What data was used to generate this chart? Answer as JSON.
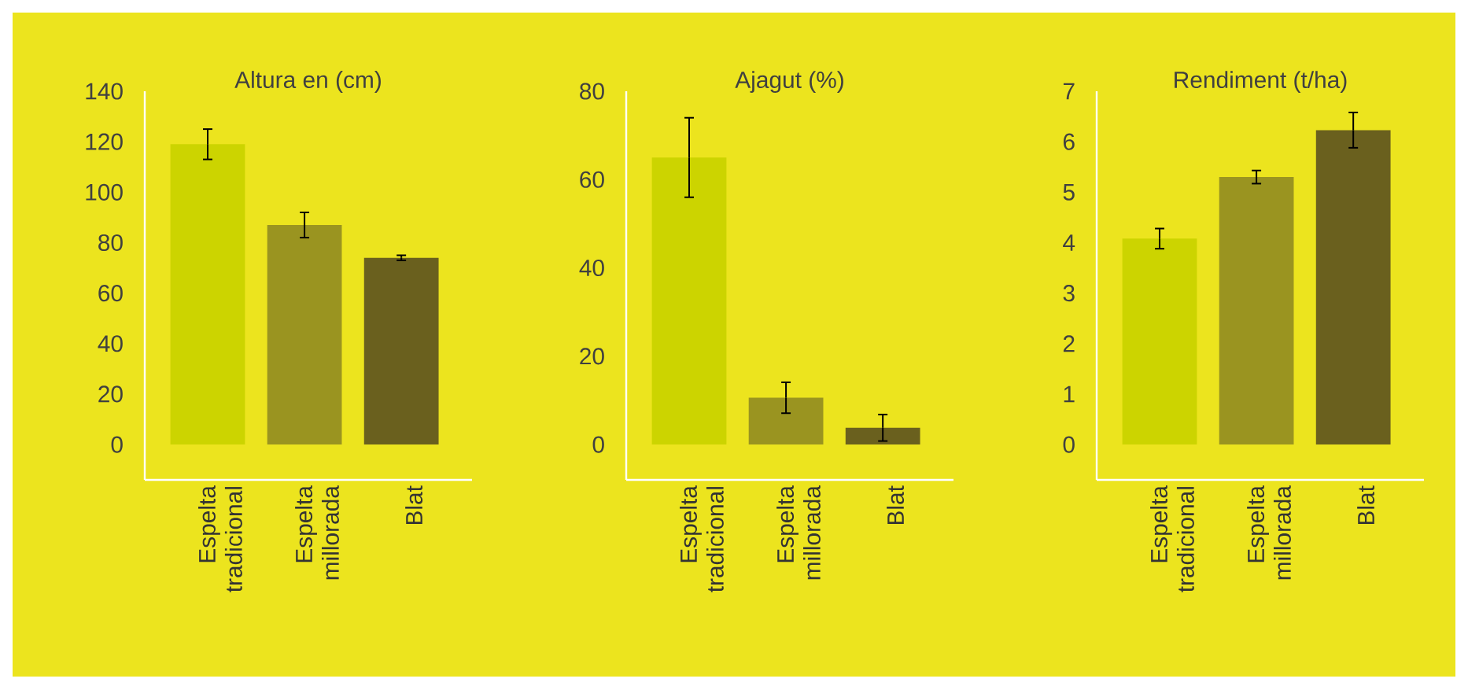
{
  "chart_data": [
    {
      "type": "bar",
      "title": "Altura en (cm)",
      "categories": [
        "Espelta tradicional",
        "Espelta millorada",
        "Blat"
      ],
      "values": [
        119,
        87,
        74
      ],
      "errors": [
        6,
        5,
        1
      ],
      "colors": [
        "#ccd400",
        "#9a9420",
        "#6a601e"
      ],
      "ylim": [
        -14,
        140
      ],
      "yticks": [
        0,
        20,
        40,
        60,
        80,
        100,
        120,
        140
      ]
    },
    {
      "type": "bar",
      "title": "Ajagut (%)",
      "categories": [
        "Espelta tradicional",
        "Espelta millorada",
        "Blat"
      ],
      "values": [
        65,
        10.6,
        3.8
      ],
      "errors": [
        9,
        3.5,
        3
      ],
      "colors": [
        "#ccd400",
        "#9a9420",
        "#6a601e"
      ],
      "ylim": [
        -8,
        80
      ],
      "yticks": [
        0,
        20,
        40,
        60,
        80
      ]
    },
    {
      "type": "bar",
      "title": "Rendiment (t/ha)",
      "categories": [
        "Espelta tradicional",
        "Espelta millorada",
        "Blat"
      ],
      "values": [
        4.08,
        5.3,
        6.23
      ],
      "errors": [
        0.2,
        0.13,
        0.35
      ],
      "colors": [
        "#ccd400",
        "#9a9420",
        "#6a601e"
      ],
      "ylim": [
        -0.7,
        7
      ],
      "yticks": [
        0,
        1,
        2,
        3,
        4,
        5,
        6,
        7
      ]
    }
  ]
}
